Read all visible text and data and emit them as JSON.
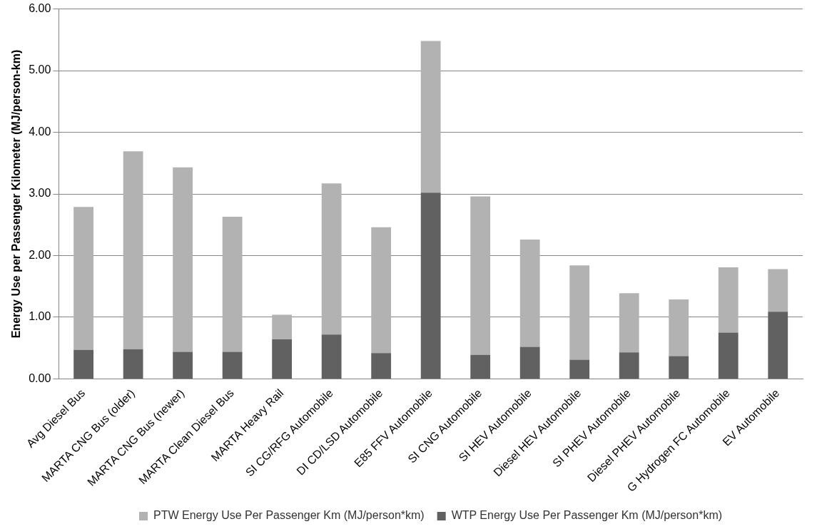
{
  "chart_data": {
    "type": "bar",
    "stacked": true,
    "ylabel": "Energy Use per Passenger Kilometer (MJ/person-km)",
    "categories": [
      "Avg Diesel Bus",
      "MARTA CNG Bus (older)",
      "MARTA CNG Bus (newer)",
      "MARTA Clean Diesel Bus",
      "MARTA Heavy Rail",
      "SI CG/RFG Automobile",
      "DI CD/LSD Automobile",
      "E85 FFV Automobile",
      "SI CNG Automobile",
      "SI HEV Automobile",
      "Diesel HEV Automobile",
      "SI PHEV Automobile",
      "Diesel PHEV Automobile",
      "G Hydrogen FC Automobile",
      "EV Automobile"
    ],
    "series": [
      {
        "name": "WTP Energy Use Per Passenger Km (MJ/person*km)",
        "color": "#616161",
        "values": [
          0.47,
          0.48,
          0.44,
          0.44,
          0.64,
          0.72,
          0.42,
          3.02,
          0.39,
          0.52,
          0.31,
          0.43,
          0.37,
          0.75,
          1.09
        ]
      },
      {
        "name": "PTW Energy Use Per Passenger Km (MJ/person*km)",
        "color": "#b2b2b2",
        "values": [
          2.32,
          3.21,
          2.99,
          2.19,
          0.4,
          2.45,
          2.04,
          2.46,
          2.57,
          1.74,
          1.53,
          0.96,
          0.92,
          1.06,
          0.69
        ]
      }
    ],
    "ylim": [
      0,
      6
    ],
    "yticks": [
      {
        "value": 0,
        "label": "0.00"
      },
      {
        "value": 1,
        "label": "1.00"
      },
      {
        "value": 2,
        "label": "2.00"
      },
      {
        "value": 3,
        "label": "3.00"
      },
      {
        "value": 4,
        "label": "4.00"
      },
      {
        "value": 5,
        "label": "5.00"
      },
      {
        "value": 6,
        "label": "6.00"
      }
    ],
    "grid": "y",
    "legend": "bottom"
  }
}
